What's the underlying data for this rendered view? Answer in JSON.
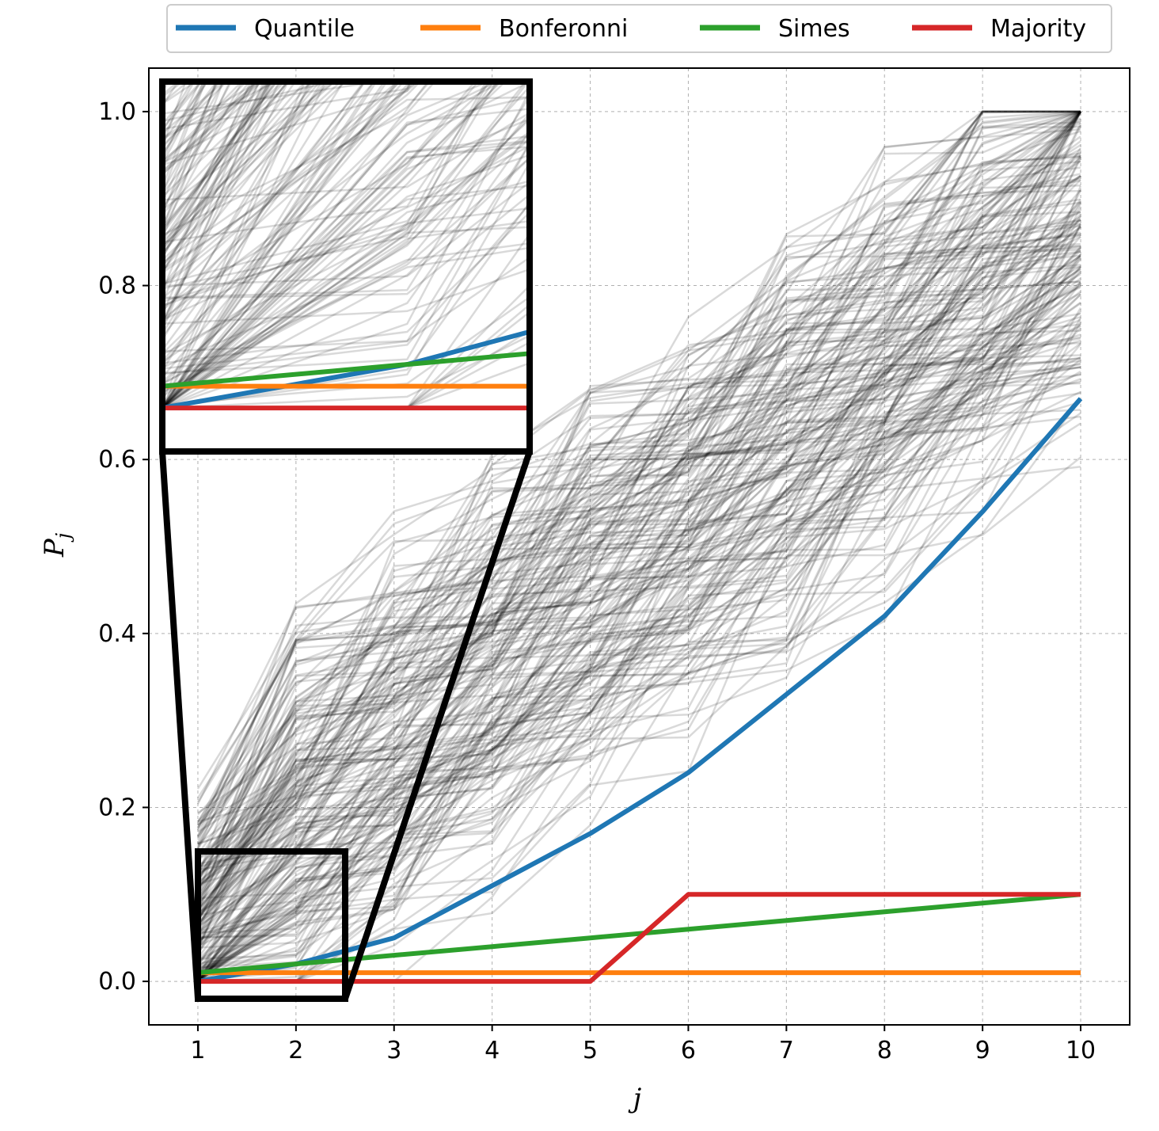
{
  "chart_data": {
    "type": "line",
    "title": "",
    "xlabel": "j",
    "ylabel": "P_j",
    "ylabel_sub": "j",
    "ylabel_main": "P",
    "x": [
      1,
      2,
      3,
      4,
      5,
      6,
      7,
      8,
      9,
      10
    ],
    "xlim": [
      0.5,
      10.5
    ],
    "ylim": [
      -0.05,
      1.05
    ],
    "xticks": [
      "1",
      "2",
      "3",
      "4",
      "5",
      "6",
      "7",
      "8",
      "9",
      "10"
    ],
    "yticks": [
      "0.0",
      "0.2",
      "0.4",
      "0.6",
      "0.8",
      "1.0"
    ],
    "grid": true,
    "legend_position": "top",
    "series": [
      {
        "name": "Quantile",
        "color": "#1f77b4",
        "values": [
          0.0,
          0.02,
          0.05,
          0.11,
          0.17,
          0.24,
          0.33,
          0.42,
          0.54,
          0.67
        ]
      },
      {
        "name": "Bonferonni",
        "color": "#ff7f0e",
        "values": [
          0.01,
          0.01,
          0.01,
          0.01,
          0.01,
          0.01,
          0.01,
          0.01,
          0.01,
          0.01
        ]
      },
      {
        "name": "Simes",
        "color": "#2ca02c",
        "values": [
          0.01,
          0.02,
          0.03,
          0.04,
          0.05,
          0.06,
          0.07,
          0.08,
          0.09,
          0.1
        ]
      },
      {
        "name": "Majority",
        "color": "#d62728",
        "values": [
          0.0,
          0.0,
          0.0,
          0.0,
          0.0,
          0.1,
          0.1,
          0.1,
          0.1,
          0.1
        ]
      }
    ],
    "background_samples": {
      "color": "#000000",
      "opacity": 0.15,
      "description_count": 200
    },
    "inset": {
      "zoom_xlim": [
        1.0,
        2.5
      ],
      "zoom_ylim": [
        -0.02,
        0.15
      ]
    }
  }
}
